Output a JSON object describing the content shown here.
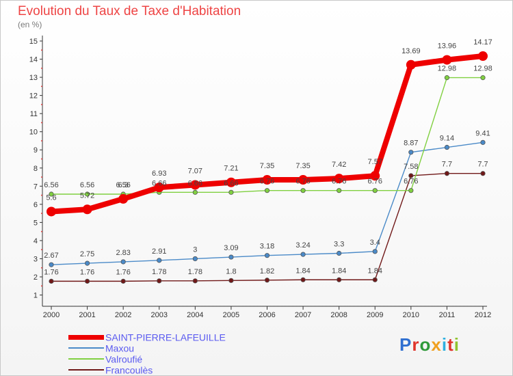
{
  "page": {
    "title": "Evolution du Taux de Taxe d'Habitation",
    "subtitle": "(en %)"
  },
  "logo": {
    "text": "Proxiti",
    "letter_colors": [
      "#2f6fd0",
      "#e0342c",
      "#2f9a3a",
      "#f0a020",
      "#2fb0e0",
      "#e0342c",
      "#8fc22f"
    ]
  },
  "chart_data": {
    "type": "line",
    "title": "Evolution du Taux de Taxe d'Habitation",
    "ylabel": "(en %)",
    "xlabel": "",
    "ylim": [
      1,
      15
    ],
    "yticks": [
      "1",
      "2",
      "3",
      "4",
      "5",
      "6",
      "7",
      "8",
      "9",
      "10",
      "11",
      "12",
      "13",
      "14",
      "15"
    ],
    "categories": [
      "2000",
      "2001",
      "2002",
      "2003",
      "2004",
      "2005",
      "2006",
      "2007",
      "2008",
      "2009",
      "2010",
      "2011",
      "2012"
    ],
    "grid": false,
    "series": [
      {
        "name": "SAINT-PIERRE-LAFEUILLE",
        "color": "#ee0000",
        "values": [
          5.6,
          5.72,
          6.3,
          6.93,
          7.07,
          7.21,
          7.35,
          7.35,
          7.42,
          7.57,
          13.69,
          13.96,
          14.17
        ],
        "labels": [
          "5.6",
          "5.72",
          "6.3",
          "6.93",
          "7.07",
          "7.21",
          "7.35",
          "7.35",
          "7.42",
          "7.57",
          "13.69",
          "13.96",
          "14.17"
        ]
      },
      {
        "name": "Maxou",
        "color": "#4a8ac8",
        "values": [
          2.67,
          2.75,
          2.83,
          2.91,
          3,
          3.09,
          3.18,
          3.24,
          3.3,
          3.4,
          8.87,
          9.14,
          9.41
        ],
        "labels": [
          "2.67",
          "2.75",
          "2.83",
          "2.91",
          "3",
          "3.09",
          "3.18",
          "3.24",
          "3.3",
          "3.4",
          "8.87",
          "9.14",
          "9.41"
        ]
      },
      {
        "name": "Valroufié",
        "color": "#80d040",
        "values": [
          6.56,
          6.56,
          6.56,
          6.66,
          6.66,
          6.66,
          6.76,
          6.76,
          6.76,
          6.76,
          6.76,
          12.98,
          12.98
        ],
        "labels": [
          "6.56",
          "6.56",
          "6.56",
          "6.66",
          "6.66",
          "6.66",
          "6.76",
          "6.76",
          "6.76",
          "6.76",
          "6.76",
          "12.98",
          "12.98"
        ]
      },
      {
        "name": "Francoulès",
        "color": "#701818",
        "values": [
          1.76,
          1.76,
          1.76,
          1.78,
          1.78,
          1.8,
          1.82,
          1.84,
          1.84,
          1.84,
          7.58,
          7.7,
          7.7
        ],
        "labels": [
          "1.76",
          "1.76",
          "1.76",
          "1.78",
          "1.78",
          "1.8",
          "1.82",
          "1.84",
          "1.84",
          "1.84",
          "7.58",
          "7.7",
          "7.7"
        ]
      }
    ]
  }
}
